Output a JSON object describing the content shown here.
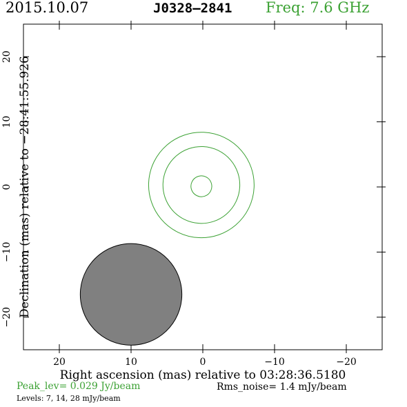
{
  "header": {
    "date": "2015.10.07",
    "source": "J0328—2841",
    "frequency": "Freq: 7.6 GHz"
  },
  "colors": {
    "contour": "#3ba133",
    "beam_fill": "#808080",
    "axis": "#000000"
  },
  "chart_data": {
    "type": "contour",
    "xlabel": "Right ascension (mas) relative to 03:28:36.5180",
    "ylabel": "Declination (mas) relative to −28:41:55.926",
    "xlim": [
      25,
      -25
    ],
    "ylim": [
      -25,
      25
    ],
    "x_ticks": [
      20,
      10,
      0,
      -10,
      -20
    ],
    "y_ticks": [
      20,
      10,
      0,
      -10,
      -20
    ],
    "x_tick_labels": [
      "20",
      "10",
      "0",
      "−10",
      "−20"
    ],
    "y_tick_labels": [
      "20",
      "10",
      "0",
      "−10",
      "−20"
    ],
    "contours": [
      {
        "level": 7,
        "center": [
          0.2,
          0.3
        ],
        "semi_major": 8.1,
        "semi_minor": 2.9,
        "pa_deg": 19
      },
      {
        "level": 14,
        "center": [
          0.2,
          0.3
        ],
        "semi_major": 5.9,
        "semi_minor": 1.7,
        "pa_deg": 19
      },
      {
        "level": 28,
        "center": [
          0.2,
          0.1
        ],
        "semi_major": 1.6,
        "semi_minor": 0.5,
        "pa_deg": 19
      }
    ],
    "beam": {
      "center": [
        10,
        -16.5
      ],
      "semi_major": 7.8,
      "semi_minor": 1.9,
      "pa_deg": 16
    },
    "peak_level": "Peak_lev=  0.029 Jy/beam",
    "rms_noise": "Rms_noise=   1.4 mJy/beam",
    "levels_text": "Levels:   7,  14,  28 mJy/beam"
  }
}
